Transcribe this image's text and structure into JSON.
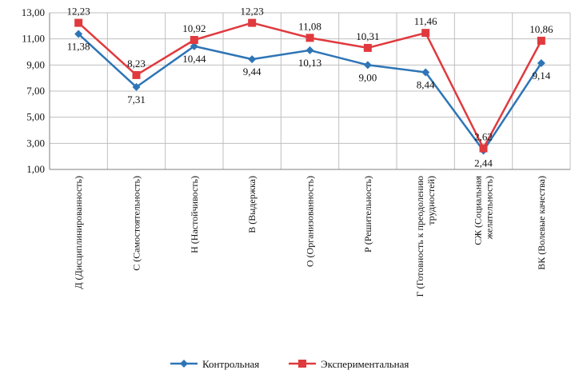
{
  "chart_data": {
    "type": "line",
    "title": "",
    "xlabel": "",
    "ylabel": "",
    "ylim": [
      1,
      13
    ],
    "yticks": [
      "1,00",
      "3,00",
      "5,00",
      "7,00",
      "9,00",
      "11,00",
      "13,00"
    ],
    "grid": true,
    "legend_position": "bottom",
    "categories": [
      [
        "Д (Дисциплинированность)"
      ],
      [
        "С (Самостоятельность)"
      ],
      [
        "Н (Настойчивость)"
      ],
      [
        "В (Выдержка)"
      ],
      [
        "О (Организованность)"
      ],
      [
        "Р (Решительность)"
      ],
      [
        "Г (Готовность к преодолению",
        "трудностей)"
      ],
      [
        "СЖ (Социальная",
        "желательность)"
      ],
      [
        "ВК (Волевые качества)"
      ]
    ],
    "series": [
      {
        "name": "Контрольная",
        "color": "#2e75b6",
        "marker": "diamond",
        "values": [
          11.38,
          7.31,
          10.44,
          9.44,
          10.13,
          9.0,
          8.44,
          2.44,
          9.14
        ],
        "labels": [
          "11,38",
          "7,31",
          "10,44",
          "9,44",
          "10,13",
          "9,00",
          "8,44",
          "2,44",
          "9,14"
        ]
      },
      {
        "name": "Экспериментальная",
        "color": "#e03a3e",
        "marker": "square",
        "values": [
          12.23,
          8.23,
          10.92,
          12.23,
          11.08,
          10.31,
          11.46,
          2.62,
          10.86
        ],
        "labels": [
          "12,23",
          "8,23",
          "10,92",
          "12,23",
          "11,08",
          "10,31",
          "11,46",
          "2,62",
          "10,86"
        ]
      }
    ]
  }
}
